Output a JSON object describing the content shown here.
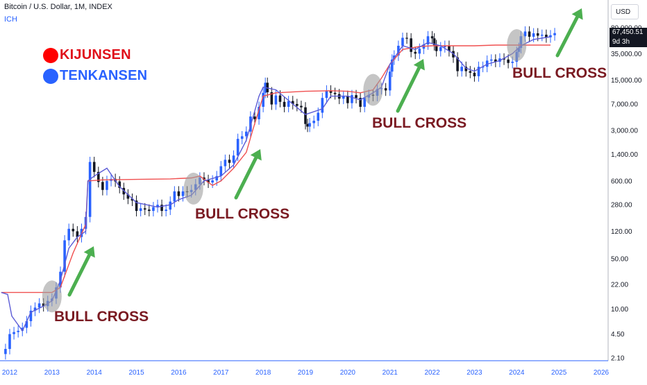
{
  "header": {
    "title": "Bitcoin / U.S. Dollar, 1M, INDEX",
    "indicator": "ICH"
  },
  "legend": [
    {
      "name": "KIJUNSEN",
      "color": "#ff0000"
    },
    {
      "name": "TENKANSEN",
      "color": "#2962ff"
    }
  ],
  "price_scale": {
    "currency": "USD",
    "current_price": "67,450.51",
    "countdown": "9d 3h"
  },
  "annotations": {
    "bull_cross_label": "BULL CROSS"
  },
  "colors": {
    "up_candle": "#2962ff",
    "down_candle": "#131722",
    "kijun_line": "#f05050",
    "tenkan_line": "#5b5bd6",
    "arrow": "#4caf50",
    "cross_circle": "#9e9e9e"
  },
  "chart_data": {
    "type": "line",
    "scale": "log",
    "x_ticks": [
      "2012",
      "2013",
      "2014",
      "2015",
      "2016",
      "2017",
      "2018",
      "2019",
      "2020",
      "2021",
      "2022",
      "2023",
      "2024",
      "2025",
      "2026"
    ],
    "y_ticks": [
      2.1,
      4.5,
      10.0,
      22.0,
      50.0,
      120.0,
      280.0,
      600.0,
      1400.0,
      3000.0,
      7000.0,
      15000.0,
      35000.0,
      80000.0
    ],
    "y_tick_labels": [
      "2.10",
      "4.50",
      "10.00",
      "22.00",
      "50.00",
      "120.00",
      "280.00",
      "600.00",
      "1,400.00",
      "3,000.00",
      "7,000.00",
      "15,000.00",
      "35,000.00",
      "80,000.00"
    ],
    "ylim": [
      1.6,
      250000
    ],
    "series": [
      {
        "name": "KIJUNSEN",
        "points": [
          [
            2011.8,
            17
          ],
          [
            2012.5,
            17
          ],
          [
            2013.0,
            17
          ],
          [
            2013.2,
            20
          ],
          [
            2013.5,
            60
          ],
          [
            2013.8,
            150
          ],
          [
            2013.85,
            600
          ],
          [
            2014.2,
            620
          ],
          [
            2015.0,
            630
          ],
          [
            2015.8,
            640
          ],
          [
            2016.3,
            660
          ],
          [
            2016.5,
            700
          ],
          [
            2016.8,
            520
          ],
          [
            2017.0,
            600
          ],
          [
            2017.3,
            900
          ],
          [
            2017.6,
            1500
          ],
          [
            2017.75,
            3000
          ],
          [
            2018.0,
            9000
          ],
          [
            2018.3,
            10000
          ],
          [
            2019.0,
            10500
          ],
          [
            2019.6,
            10700
          ],
          [
            2020.0,
            10500
          ],
          [
            2020.3,
            10000
          ],
          [
            2020.6,
            11000
          ],
          [
            2020.8,
            16000
          ],
          [
            2021.0,
            25000
          ],
          [
            2021.3,
            40000
          ],
          [
            2021.7,
            44000
          ],
          [
            2022.0,
            45000
          ],
          [
            2022.5,
            45000
          ],
          [
            2023.0,
            45000
          ],
          [
            2023.5,
            46000
          ],
          [
            2024.0,
            46000
          ],
          [
            2024.3,
            46000
          ],
          [
            2024.8,
            46000
          ]
        ]
      },
      {
        "name": "TENKANSEN",
        "points": [
          [
            2011.8,
            17
          ],
          [
            2011.95,
            16
          ],
          [
            2012.05,
            8
          ],
          [
            2012.3,
            5
          ],
          [
            2012.5,
            9
          ],
          [
            2012.8,
            11
          ],
          [
            2013.0,
            13
          ],
          [
            2013.2,
            25
          ],
          [
            2013.4,
            70
          ],
          [
            2013.6,
            100
          ],
          [
            2013.8,
            120
          ],
          [
            2013.85,
            600
          ],
          [
            2014.0,
            700
          ],
          [
            2014.3,
            900
          ],
          [
            2014.6,
            500
          ],
          [
            2015.0,
            300
          ],
          [
            2015.5,
            260
          ],
          [
            2015.8,
            280
          ],
          [
            2016.0,
            330
          ],
          [
            2016.3,
            380
          ],
          [
            2016.6,
            600
          ],
          [
            2017.0,
            700
          ],
          [
            2017.3,
            1000
          ],
          [
            2017.6,
            2200
          ],
          [
            2017.9,
            9000
          ],
          [
            2018.0,
            12000
          ],
          [
            2018.3,
            11000
          ],
          [
            2018.7,
            7000
          ],
          [
            2019.0,
            5000
          ],
          [
            2019.4,
            6000
          ],
          [
            2019.6,
            9000
          ],
          [
            2020.0,
            9000
          ],
          [
            2020.3,
            8000
          ],
          [
            2020.6,
            10000
          ],
          [
            2020.8,
            12000
          ],
          [
            2021.0,
            25000
          ],
          [
            2021.3,
            45000
          ],
          [
            2021.6,
            40000
          ],
          [
            2021.9,
            50000
          ],
          [
            2022.2,
            45000
          ],
          [
            2022.5,
            35000
          ],
          [
            2022.8,
            22000
          ],
          [
            2023.0,
            20000
          ],
          [
            2023.3,
            25000
          ],
          [
            2023.6,
            28000
          ],
          [
            2023.9,
            35000
          ],
          [
            2024.1,
            45000
          ],
          [
            2024.4,
            55000
          ],
          [
            2024.8,
            60000
          ]
        ]
      }
    ],
    "candles_close": [
      [
        2011.9,
        2.8
      ],
      [
        2012.0,
        4.5
      ],
      [
        2012.1,
        4.8
      ],
      [
        2012.2,
        5.0
      ],
      [
        2012.3,
        5.5
      ],
      [
        2012.4,
        6.8
      ],
      [
        2012.5,
        9.5
      ],
      [
        2012.6,
        10.5
      ],
      [
        2012.7,
        12
      ],
      [
        2012.8,
        11
      ],
      [
        2012.9,
        13
      ],
      [
        2013.0,
        14
      ],
      [
        2013.1,
        20
      ],
      [
        2013.2,
        33
      ],
      [
        2013.3,
        90
      ],
      [
        2013.4,
        130
      ],
      [
        2013.5,
        120
      ],
      [
        2013.6,
        100
      ],
      [
        2013.7,
        130
      ],
      [
        2013.8,
        190
      ],
      [
        2013.9,
        1100
      ],
      [
        2014.0,
        800
      ],
      [
        2014.1,
        580
      ],
      [
        2014.2,
        450
      ],
      [
        2014.3,
        600
      ],
      [
        2014.4,
        640
      ],
      [
        2014.5,
        590
      ],
      [
        2014.6,
        480
      ],
      [
        2014.7,
        390
      ],
      [
        2014.8,
        340
      ],
      [
        2014.9,
        320
      ],
      [
        2015.0,
        230
      ],
      [
        2015.1,
        250
      ],
      [
        2015.2,
        240
      ],
      [
        2015.3,
        230
      ],
      [
        2015.4,
        260
      ],
      [
        2015.5,
        280
      ],
      [
        2015.6,
        230
      ],
      [
        2015.7,
        240
      ],
      [
        2015.8,
        310
      ],
      [
        2015.9,
        430
      ],
      [
        2016.0,
        370
      ],
      [
        2016.1,
        430
      ],
      [
        2016.2,
        420
      ],
      [
        2016.3,
        450
      ],
      [
        2016.4,
        540
      ],
      [
        2016.5,
        670
      ],
      [
        2016.6,
        620
      ],
      [
        2016.7,
        570
      ],
      [
        2016.8,
        610
      ],
      [
        2016.9,
        700
      ],
      [
        2017.0,
        960
      ],
      [
        2017.1,
        1180
      ],
      [
        2017.2,
        1070
      ],
      [
        2017.3,
        1350
      ],
      [
        2017.4,
        2300
      ],
      [
        2017.5,
        2500
      ],
      [
        2017.6,
        2900
      ],
      [
        2017.7,
        4700
      ],
      [
        2017.8,
        4300
      ],
      [
        2017.9,
        6400
      ],
      [
        2018.0,
        10000
      ],
      [
        2018.05,
        13800
      ],
      [
        2018.1,
        10200
      ],
      [
        2018.2,
        6900
      ],
      [
        2018.3,
        9200
      ],
      [
        2018.4,
        7500
      ],
      [
        2018.5,
        6400
      ],
      [
        2018.6,
        7700
      ],
      [
        2018.7,
        7000
      ],
      [
        2018.8,
        6600
      ],
      [
        2018.9,
        6300
      ],
      [
        2019.0,
        3700
      ],
      [
        2019.05,
        3400
      ],
      [
        2019.1,
        3800
      ],
      [
        2019.2,
        4100
      ],
      [
        2019.3,
        5300
      ],
      [
        2019.4,
        8500
      ],
      [
        2019.5,
        10800
      ],
      [
        2019.6,
        10000
      ],
      [
        2019.7,
        9600
      ],
      [
        2019.8,
        8300
      ],
      [
        2019.9,
        9100
      ],
      [
        2020.0,
        7200
      ],
      [
        2020.1,
        9300
      ],
      [
        2020.2,
        8500
      ],
      [
        2020.3,
        6400
      ],
      [
        2020.4,
        8600
      ],
      [
        2020.5,
        9400
      ],
      [
        2020.6,
        9100
      ],
      [
        2020.7,
        11300
      ],
      [
        2020.8,
        11600
      ],
      [
        2020.9,
        10800
      ],
      [
        2021.0,
        19700
      ],
      [
        2021.05,
        29000
      ],
      [
        2021.1,
        33000
      ],
      [
        2021.2,
        45000
      ],
      [
        2021.3,
        58000
      ],
      [
        2021.4,
        57000
      ],
      [
        2021.5,
        37000
      ],
      [
        2021.6,
        35000
      ],
      [
        2021.7,
        41000
      ],
      [
        2021.8,
        47000
      ],
      [
        2021.9,
        61000
      ],
      [
        2022.0,
        57000
      ],
      [
        2022.05,
        46000
      ],
      [
        2022.1,
        38000
      ],
      [
        2022.2,
        43000
      ],
      [
        2022.3,
        45000
      ],
      [
        2022.4,
        38000
      ],
      [
        2022.5,
        31000
      ],
      [
        2022.6,
        20000
      ],
      [
        2022.7,
        23000
      ],
      [
        2022.8,
        20000
      ],
      [
        2022.9,
        19000
      ],
      [
        2023.0,
        17000
      ],
      [
        2023.1,
        23000
      ],
      [
        2023.2,
        23000
      ],
      [
        2023.3,
        28000
      ],
      [
        2023.4,
        29000
      ],
      [
        2023.5,
        27000
      ],
      [
        2023.6,
        30000
      ],
      [
        2023.7,
        29000
      ],
      [
        2023.8,
        26000
      ],
      [
        2023.9,
        27000
      ],
      [
        2024.0,
        37000
      ],
      [
        2024.05,
        42000
      ],
      [
        2024.1,
        61000
      ],
      [
        2024.2,
        71000
      ],
      [
        2024.3,
        60000
      ],
      [
        2024.4,
        67000
      ],
      [
        2024.5,
        62000
      ],
      [
        2024.6,
        64000
      ],
      [
        2024.7,
        59000
      ],
      [
        2024.8,
        63000
      ],
      [
        2024.9,
        67450
      ]
    ],
    "bull_crosses": [
      2013.0,
      2016.35,
      2020.6,
      2024.0
    ]
  }
}
